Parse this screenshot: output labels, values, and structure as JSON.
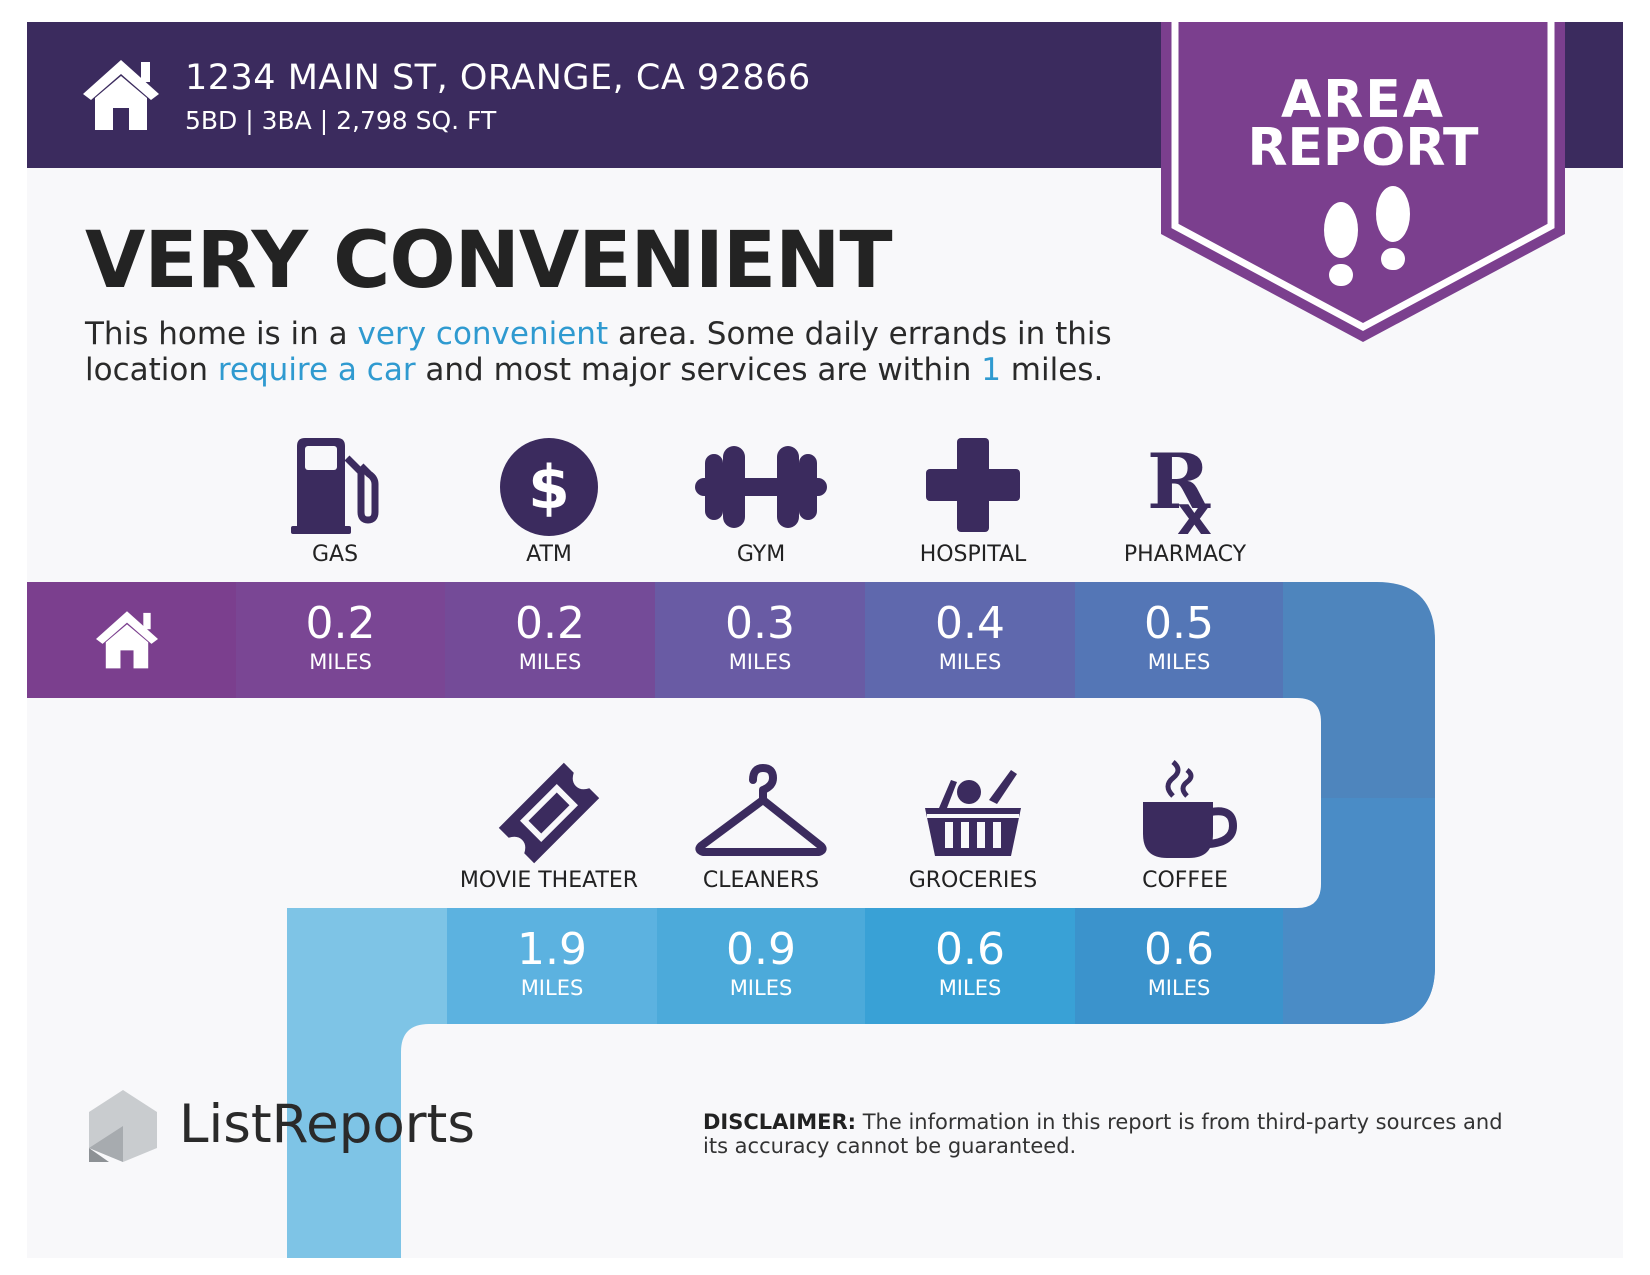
{
  "header": {
    "address": "1234 MAIN ST, ORANGE, CA 92866",
    "specs": "5BD | 3BA | 2,798 SQ. FT",
    "badge_line1": "AREA",
    "badge_line2": "REPORT"
  },
  "summary": {
    "headline": "VERY CONVENIENT",
    "desc_1": "This home is in a ",
    "desc_hl_1": "very convenient",
    "desc_2": " area. Some daily errands in this location ",
    "desc_hl_2": "require a car",
    "desc_3": " and most major services are within ",
    "desc_hl_3": "1",
    "desc_4": " miles."
  },
  "amenities_top": [
    {
      "label": "GAS",
      "distance": "0.2",
      "unit": "MILES",
      "icon": "gas-pump-icon"
    },
    {
      "label": "ATM",
      "distance": "0.2",
      "unit": "MILES",
      "icon": "dollar-icon"
    },
    {
      "label": "GYM",
      "distance": "0.3",
      "unit": "MILES",
      "icon": "dumbbell-icon"
    },
    {
      "label": "HOSPITAL",
      "distance": "0.4",
      "unit": "MILES",
      "icon": "medical-cross-icon"
    },
    {
      "label": "PHARMACY",
      "distance": "0.5",
      "unit": "MILES",
      "icon": "rx-icon"
    }
  ],
  "amenities_bottom": [
    {
      "label": "MOVIE THEATER",
      "distance": "1.9",
      "unit": "MILES",
      "icon": "ticket-icon"
    },
    {
      "label": "CLEANERS",
      "distance": "0.9",
      "unit": "MILES",
      "icon": "hanger-icon"
    },
    {
      "label": "GROCERIES",
      "distance": "0.6",
      "unit": "MILES",
      "icon": "basket-icon"
    },
    {
      "label": "COFFEE",
      "distance": "0.6",
      "unit": "MILES",
      "icon": "coffee-cup-icon"
    }
  ],
  "footer": {
    "brand": "ListReports",
    "disclaimer_bold": "DISCLAIMER:",
    "disclaimer_text": " The information in this report is from third-party sources and its accuracy cannot be guaranteed."
  },
  "colors": {
    "header_bg": "#3b2b5e",
    "badge": "#7b3f8e",
    "icon": "#3b2b5e",
    "highlight": "#2f9ad0",
    "band_top": [
      "#7b3f8e",
      "#7a4694",
      "#744b98",
      "#695ba4",
      "#5f68ad",
      "#5476b6",
      "#4e85bd"
    ],
    "band_bottom": [
      "#7ec4e6",
      "#5cb2e0",
      "#4caada",
      "#39a1d6",
      "#3b93cc",
      "#4c87c2"
    ]
  }
}
